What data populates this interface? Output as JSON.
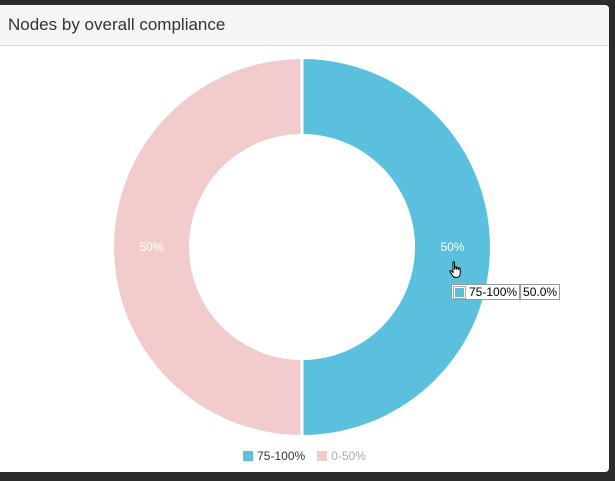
{
  "panel": {
    "title": "Nodes by overall compliance"
  },
  "chart_data": {
    "type": "pie",
    "variant": "donut",
    "categories": [
      "75-100%",
      "0-50%"
    ],
    "values": [
      50,
      50
    ],
    "slice_labels": [
      "50%",
      "50%"
    ],
    "colors": [
      "#5bc0de",
      "#f2cccc"
    ],
    "legend": {
      "placement": "bottom",
      "items": [
        {
          "label": "75-100%",
          "color": "#5bc0de",
          "text_color": "#333333"
        },
        {
          "label": "0-50%",
          "color": "#f2cccc",
          "text_color": "#aaaaaa"
        }
      ]
    }
  },
  "tooltip": {
    "label": "75-100%",
    "value": "50.0%",
    "color": "#5bc0de"
  },
  "cursor": {
    "icon": "pointer-hand-icon"
  }
}
